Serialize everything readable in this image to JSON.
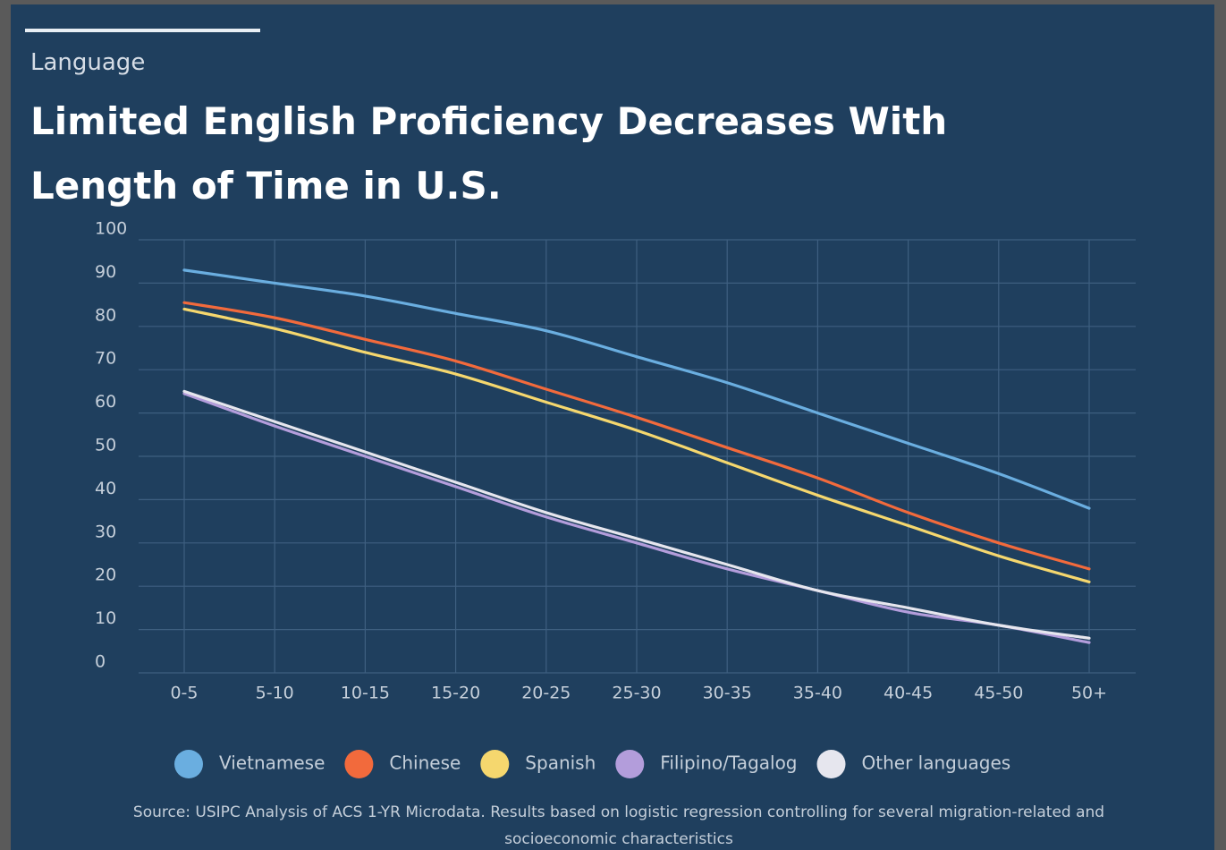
{
  "chart_data": {
    "type": "line",
    "subtitle": "Language",
    "title": "Limited English Proficiency Decreases With Length of Time in U.S.",
    "categories": [
      "0-5",
      "5-10",
      "10-15",
      "15-20",
      "20-25",
      "25-30",
      "30-35",
      "35-40",
      "40-45",
      "45-50",
      "50+"
    ],
    "series": [
      {
        "name": "Vietnamese",
        "color": "#6aaee0",
        "values": [
          93,
          90,
          87,
          83,
          79,
          73,
          67,
          60,
          53,
          46,
          38
        ]
      },
      {
        "name": "Chinese",
        "color": "#f26a3c",
        "values": [
          85.5,
          82,
          77,
          72,
          65.5,
          59,
          52,
          45,
          37,
          30,
          24
        ]
      },
      {
        "name": "Spanish",
        "color": "#f5d76e",
        "values": [
          84,
          79.5,
          74,
          69,
          62.5,
          56,
          48.5,
          41,
          34,
          27,
          21
        ]
      },
      {
        "name": "Filipino/Tagalog",
        "color": "#b39ddb",
        "values": [
          64.5,
          57,
          50,
          43,
          36,
          30,
          24,
          19,
          14,
          11,
          7
        ]
      },
      {
        "name": "Other languages",
        "color": "#e6e6ee",
        "values": [
          65,
          58,
          51,
          44,
          37,
          31,
          25,
          19,
          15,
          11,
          8
        ]
      }
    ],
    "ylim": [
      0,
      100
    ],
    "yticks": [
      0,
      10,
      20,
      30,
      40,
      50,
      60,
      70,
      80,
      90,
      100
    ],
    "grid": true,
    "source": "Source: USIPC Analysis of ACS 1-YR Microdata. Results based on logistic regression controlling for several migration-related and socioeconomic characteristics"
  }
}
